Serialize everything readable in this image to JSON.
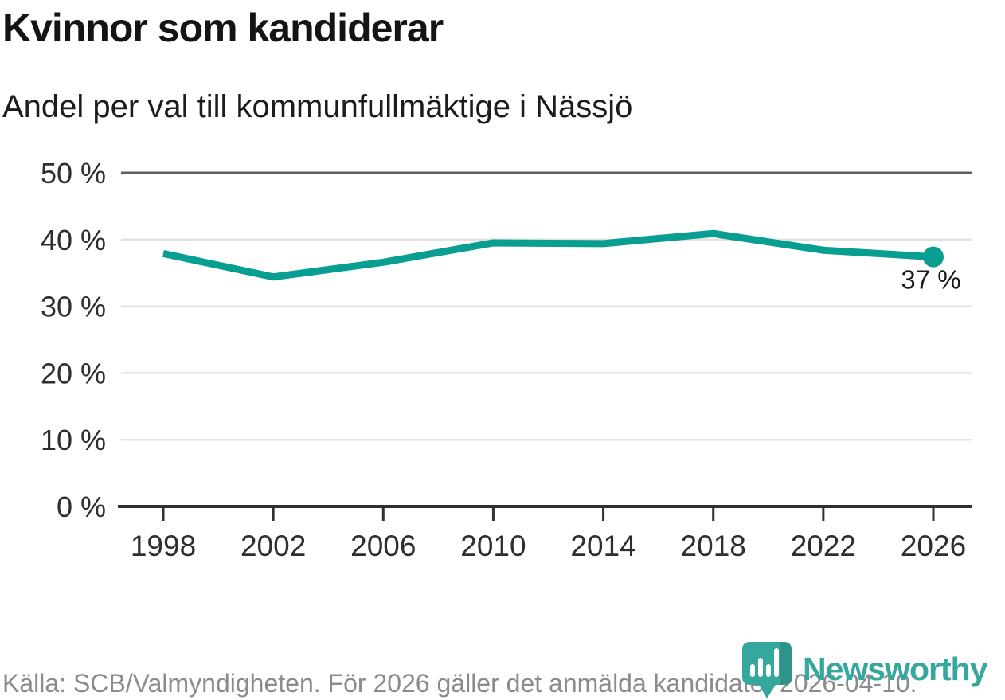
{
  "header": {
    "title": "Kvinnor som kandiderar",
    "subtitle": "Andel per val till kommunfullmäktige i Nässjö"
  },
  "chart_data": {
    "type": "line",
    "title": "Kvinnor som kandiderar",
    "subtitle": "Andel per val till kommunfullmäktige i Nässjö",
    "x": [
      1998,
      2002,
      2006,
      2010,
      2014,
      2018,
      2022,
      2026
    ],
    "series": [
      {
        "values": [
          37.9,
          34.4,
          36.6,
          39.5,
          39.4,
          40.9,
          38.4,
          37.4
        ]
      }
    ],
    "end_label": "37 %",
    "ylim": [
      0,
      50
    ],
    "yticks": [
      0,
      10,
      20,
      30,
      40,
      50
    ],
    "ytick_suffix": " %",
    "grid": "horizontal",
    "legend": "none",
    "marker": "end-dot-only"
  },
  "footer": {
    "source_text": "Källa: SCB/Valmyndigheten. För 2026 gäller det anmälda kandidater 2026-04-10.",
    "brand": "Newsworthy"
  },
  "colors": {
    "line": "#089E92",
    "grid": "#E2E2E2",
    "grid_top": "#5F5F5F",
    "axis": "#303030",
    "tick_text": "#2E2E2E",
    "end_label_text": "#1A1A1A",
    "title": "#141414",
    "footer_text": "#8B8B8B",
    "brand_teal": "#36A79C",
    "logo_bubble": "#35A79C",
    "logo_bubble_shade": "#2E948A"
  }
}
